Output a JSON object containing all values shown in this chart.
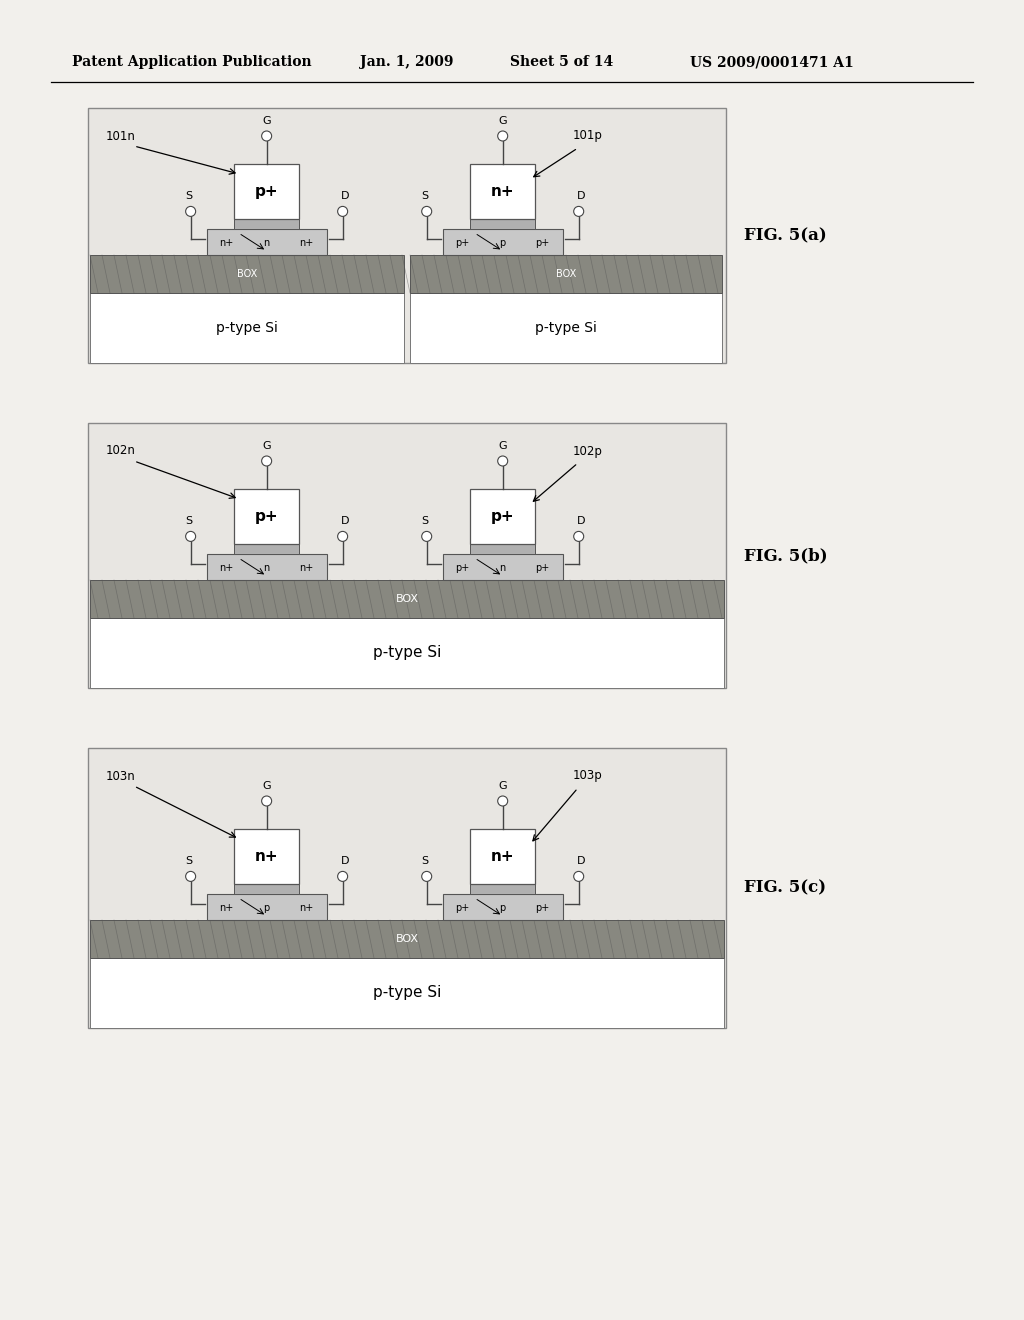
{
  "bg_color": "#f2f0ec",
  "header_text": "Patent Application Publication",
  "header_date": "Jan. 1, 2009",
  "header_sheet": "Sheet 5 of 14",
  "header_patent": "US 2009/0001471 A1",
  "figures": [
    {
      "label": "FIG. 5(a)",
      "ref_left": "101n",
      "ref_right": "101p",
      "left_device_label": "p+",
      "right_device_label": "n+",
      "left_body_labels": [
        "n+",
        "n",
        "n+"
      ],
      "right_body_labels": [
        "p+",
        "p",
        "p+"
      ],
      "box_label": "BOX",
      "substrate_label": "p-type Si",
      "separate_substrates": true,
      "left_has_diag": true,
      "right_has_diag": true
    },
    {
      "label": "FIG. 5(b)",
      "ref_left": "102n",
      "ref_right": "102p",
      "left_device_label": "p+",
      "right_device_label": "p+",
      "left_body_labels": [
        "n+",
        "n",
        "n+"
      ],
      "right_body_labels": [
        "p+",
        "n",
        "p+"
      ],
      "box_label": "BOX",
      "substrate_label": "p-type Si",
      "separate_substrates": false,
      "left_has_diag": true,
      "right_has_diag": true
    },
    {
      "label": "FIG. 5(c)",
      "ref_left": "103n",
      "ref_right": "103p",
      "left_device_label": "n+",
      "right_device_label": "n+",
      "left_body_labels": [
        "n+",
        "p",
        "n+"
      ],
      "right_body_labels": [
        "p+",
        "p",
        "p+"
      ],
      "box_label": "BOX",
      "substrate_label": "p-type Si",
      "separate_substrates": false,
      "left_has_diag": true,
      "right_has_diag": true
    }
  ]
}
